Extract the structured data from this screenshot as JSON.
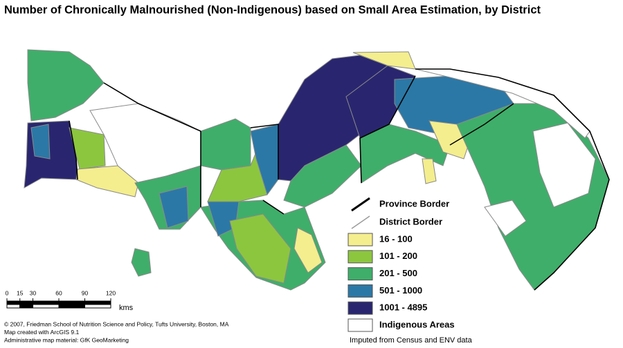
{
  "title": "Number of Chronically Malnourished (Non-Indigenous) based on Small Area Estimation, by District",
  "legend": {
    "lines": [
      {
        "label": "Province Border",
        "color": "#000000"
      },
      {
        "label": "District Border",
        "color": "#9a9a9a"
      }
    ],
    "classes": [
      {
        "label": "16 - 100",
        "color": "#f4ee8e"
      },
      {
        "label": "101 - 200",
        "color": "#8cc63f"
      },
      {
        "label": "201 - 500",
        "color": "#3fae6a"
      },
      {
        "label": "501 - 1000",
        "color": "#2b78a6"
      },
      {
        "label": "1001 - 4895",
        "color": "#29266f"
      },
      {
        "label": "Indigenous Areas",
        "color": "#ffffff"
      }
    ]
  },
  "scale": {
    "ticks": [
      0,
      15,
      30,
      60,
      90,
      120
    ],
    "unit": "kms"
  },
  "credits": [
    "© 2007, Friedman School of Nutrition Science and Policy, Tufts University, Boston, MA",
    "Map created with ArcGIS 9.1",
    "Administrative map material: GfK GeoMarketing"
  ],
  "source": "Imputed from Census and ENV data"
}
